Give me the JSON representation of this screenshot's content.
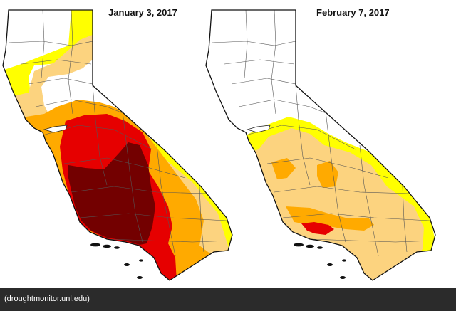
{
  "maps": [
    {
      "date": "January 3, 2017"
    },
    {
      "date": "February 7, 2017"
    }
  ],
  "caption": "(droughtmonitor.unl.edu)",
  "colors": {
    "D0": "#ffff00",
    "D1": "#fcd37f",
    "D2": "#ffaa00",
    "D3": "#e60000",
    "D4": "#730000",
    "none": "#ffffff",
    "borders": "#555555",
    "caption_bg": "#2b2b2b"
  }
}
